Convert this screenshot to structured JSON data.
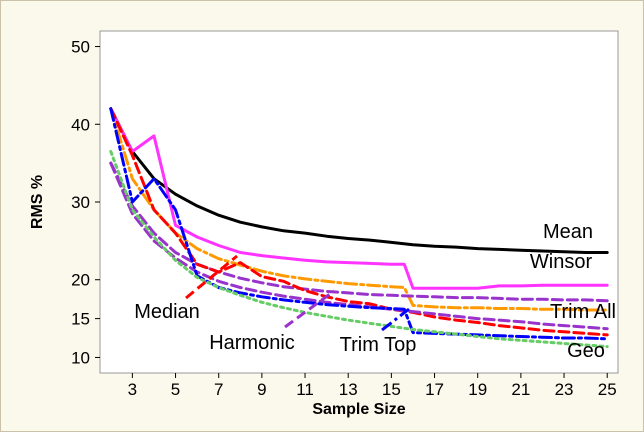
{
  "chart_data": {
    "type": "line",
    "xlabel": "Sample Size",
    "ylabel": "RMS %",
    "xlim": [
      1.5,
      25.5
    ],
    "ylim": [
      8,
      52
    ],
    "x_ticks": [
      3,
      5,
      7,
      9,
      11,
      13,
      15,
      17,
      19,
      21,
      23,
      25
    ],
    "y_ticks": [
      10,
      15,
      20,
      30,
      40,
      50
    ],
    "grid": false,
    "legend": "inline-labels",
    "series": [
      {
        "name": "Mean",
        "color": "#000000",
        "dash": "solid",
        "x": [
          2,
          3,
          4,
          5,
          6,
          7,
          8,
          9,
          10,
          11,
          12,
          13,
          14,
          15,
          16,
          17,
          18,
          19,
          20,
          21,
          22,
          23,
          24,
          25
        ],
        "y": [
          42,
          36.5,
          33,
          31,
          29.5,
          28.3,
          27.4,
          26.8,
          26.3,
          26,
          25.6,
          25.3,
          25.1,
          24.8,
          24.5,
          24.3,
          24.2,
          24,
          23.9,
          23.8,
          23.7,
          23.6,
          23.5,
          23.5
        ]
      },
      {
        "name": "Winsor",
        "color": "#ff33ff",
        "dash": "solid",
        "x": [
          2,
          3,
          4,
          5,
          6,
          7,
          8,
          9,
          10,
          11,
          12,
          13,
          14,
          15,
          15.6,
          16,
          17,
          18,
          19,
          20,
          21,
          22,
          23,
          24,
          25
        ],
        "y": [
          42,
          36.5,
          38.5,
          27,
          25.5,
          24.4,
          23.5,
          23.1,
          22.8,
          22.5,
          22.3,
          22.2,
          22.1,
          22,
          22,
          18.9,
          18.9,
          18.9,
          18.9,
          19.2,
          19.2,
          19.3,
          19.3,
          19.3,
          19.3
        ]
      },
      {
        "name": "Trim All",
        "color": "#ff9900",
        "dash": "dashdot",
        "x": [
          2,
          3,
          4,
          5,
          6,
          7,
          8,
          9,
          10,
          11,
          12,
          13,
          14,
          15,
          15.6,
          16,
          17,
          18,
          19,
          20,
          21,
          22,
          23,
          24,
          25
        ],
        "y": [
          42,
          33,
          29,
          26,
          24,
          22.7,
          21.9,
          21.1,
          20.5,
          20.1,
          19.8,
          19.5,
          19.3,
          19.1,
          19,
          16.7,
          16.5,
          16.4,
          16.4,
          16.3,
          16.3,
          16.2,
          16.2,
          16.1,
          16.1
        ]
      },
      {
        "name": "",
        "color": "#9933cc",
        "dash": "dashed",
        "x": [
          2,
          3,
          4,
          5,
          6,
          7,
          8,
          9,
          10,
          11,
          12,
          13,
          14,
          15,
          16,
          17,
          18,
          19,
          20,
          21,
          22,
          23,
          24,
          25
        ],
        "y": [
          35,
          29.5,
          26,
          23.5,
          22,
          21,
          20.2,
          19.6,
          19.1,
          18.8,
          18.5,
          18.3,
          18.1,
          18,
          17.9,
          17.8,
          17.7,
          17.7,
          17.6,
          17.5,
          17.5,
          17.4,
          17.4,
          17.3
        ]
      },
      {
        "name": "Median",
        "color": "#ff0000",
        "dash": "dashed",
        "x": [
          2,
          3,
          4,
          5,
          6,
          7,
          8,
          9,
          10,
          11,
          12,
          13,
          14,
          15,
          16,
          17,
          18,
          19,
          20,
          21,
          22,
          23,
          24,
          25
        ],
        "y": [
          42,
          36,
          29,
          26,
          22,
          21,
          22.2,
          20.4,
          19.8,
          18.6,
          17.8,
          17.2,
          16.9,
          16.2,
          15.8,
          15.2,
          14.8,
          14.5,
          14.1,
          13.8,
          13.5,
          13.3,
          13.1,
          12.9
        ]
      },
      {
        "name": "Harmonic",
        "color": "#9933cc",
        "dash": "dashed",
        "x": [
          2,
          3,
          4,
          5,
          6,
          7,
          8,
          9,
          10,
          11,
          12,
          13,
          14,
          15,
          16,
          17,
          18,
          19,
          20,
          21,
          22,
          23,
          24,
          25
        ],
        "y": [
          35,
          28.5,
          25,
          22.8,
          21,
          19.8,
          19,
          18.4,
          17.9,
          17.5,
          17.1,
          16.8,
          16.5,
          16.2,
          15.9,
          15.6,
          15.3,
          15,
          14.8,
          14.6,
          14.3,
          14.1,
          13.9,
          13.7
        ]
      },
      {
        "name": "Trim Top",
        "color": "#0000ff",
        "dash": "dashdot",
        "x": [
          2,
          3,
          4,
          5,
          6,
          7,
          8,
          9,
          10,
          11,
          12,
          13,
          14,
          15,
          15.6,
          16,
          17,
          18,
          19,
          20,
          21,
          22,
          23,
          24,
          25
        ],
        "y": [
          42,
          30,
          33,
          29,
          20.5,
          19,
          18.3,
          17.8,
          17.4,
          17.1,
          16.8,
          16.6,
          16.4,
          16.3,
          16.2,
          13.2,
          13.1,
          13,
          12.9,
          12.8,
          12.7,
          12.6,
          12.5,
          12.5,
          12.4
        ]
      },
      {
        "name": "Geo",
        "color": "#66cc66",
        "dash": "dotted",
        "x": [
          2,
          3,
          4,
          5,
          6,
          7,
          8,
          9,
          10,
          11,
          12,
          13,
          14,
          15,
          16,
          17,
          18,
          19,
          20,
          21,
          22,
          23,
          24,
          25
        ],
        "y": [
          36.5,
          29,
          25.5,
          22.5,
          20.3,
          19,
          18,
          17.1,
          16.4,
          15.8,
          15.3,
          14.8,
          14.4,
          14,
          13.6,
          13.3,
          13,
          12.7,
          12.4,
          12.2,
          12,
          11.8,
          11.6,
          11.4
        ]
      }
    ],
    "annotations": [
      {
        "text": "Mean",
        "series": "Mean"
      },
      {
        "text": "Winsor",
        "series": "Winsor"
      },
      {
        "text": "Trim All",
        "series": "Trim All"
      },
      {
        "text": "Geo",
        "series": "Geo"
      },
      {
        "text": "Median",
        "series": "Median",
        "arrow": true
      },
      {
        "text": "Harmonic",
        "series": "Harmonic",
        "arrow": true
      },
      {
        "text": "Trim Top",
        "series": "Trim Top",
        "arrow": true
      }
    ]
  }
}
